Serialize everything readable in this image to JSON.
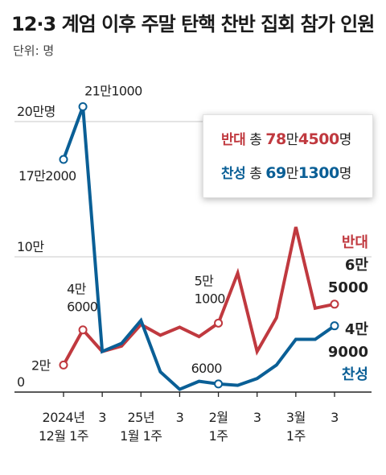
{
  "title": "12·3 계엄 이후 주말 탄핵 찬반 집회 참가 인원",
  "unit_label": "단위: 명",
  "colors": {
    "oppose": "#c0393f",
    "support": "#0a5f96",
    "grid": "#c8c8c8",
    "axis": "#222222"
  },
  "legend": {
    "oppose": {
      "name": "반대",
      "total_prefix": "총",
      "man_num": "78",
      "man": "만",
      "rest": "4500",
      "suffix": "명"
    },
    "support": {
      "name": "찬성",
      "total_prefix": "총",
      "man_num": "69",
      "man": "만",
      "rest": "1300",
      "suffix": "명"
    }
  },
  "side_labels": {
    "oppose": [
      "반대",
      "6만",
      "5000"
    ],
    "support": [
      "4만",
      "9000",
      "찬성"
    ]
  },
  "chart_data": {
    "type": "line",
    "title": "12·3 계엄 이후 주말 탄핵 찬반 집회 참가 인원",
    "ylabel": "단위: 명",
    "ylim": [
      0,
      220000
    ],
    "yticks": [
      {
        "value": 0,
        "label": "0"
      },
      {
        "value": 100000,
        "label": "10만"
      },
      {
        "value": 200000,
        "label": "20만명"
      }
    ],
    "grid": true,
    "x_ticks": [
      {
        "i": 0,
        "label": [
          "2024년",
          "12월 1주"
        ]
      },
      {
        "i": 2,
        "label": [
          "3"
        ]
      },
      {
        "i": 4,
        "label": [
          "25년",
          "1월 1주"
        ]
      },
      {
        "i": 6,
        "label": [
          "3"
        ]
      },
      {
        "i": 8,
        "label": [
          "2월",
          "1주"
        ]
      },
      {
        "i": 10,
        "label": [
          "3"
        ]
      },
      {
        "i": 12,
        "label": [
          "3월",
          "1주"
        ]
      },
      {
        "i": 14,
        "label": [
          "3"
        ]
      }
    ],
    "series": [
      {
        "name": "반대",
        "color": "#c0393f",
        "values": [
          20000,
          46000,
          30000,
          34000,
          50000,
          42000,
          48000,
          41000,
          51000,
          88000,
          30000,
          55000,
          122000,
          62000,
          65000
        ]
      },
      {
        "name": "찬성",
        "color": "#0a5f96",
        "values": [
          172000,
          211000,
          30000,
          36000,
          53000,
          15000,
          2000,
          8000,
          6000,
          5000,
          10000,
          20000,
          39000,
          39000,
          49000
        ]
      }
    ],
    "annotations": [
      {
        "series": 1,
        "i": 0,
        "label": [
          "17만2000"
        ]
      },
      {
        "series": 1,
        "i": 1,
        "label": [
          "21만1000"
        ]
      },
      {
        "series": 0,
        "i": 0,
        "label": [
          "2만"
        ]
      },
      {
        "series": 0,
        "i": 1,
        "label": [
          "4만",
          "6000"
        ]
      },
      {
        "series": 0,
        "i": 8,
        "label": [
          "5만",
          "1000"
        ]
      },
      {
        "series": 1,
        "i": 8,
        "label": [
          "6000"
        ]
      }
    ]
  }
}
